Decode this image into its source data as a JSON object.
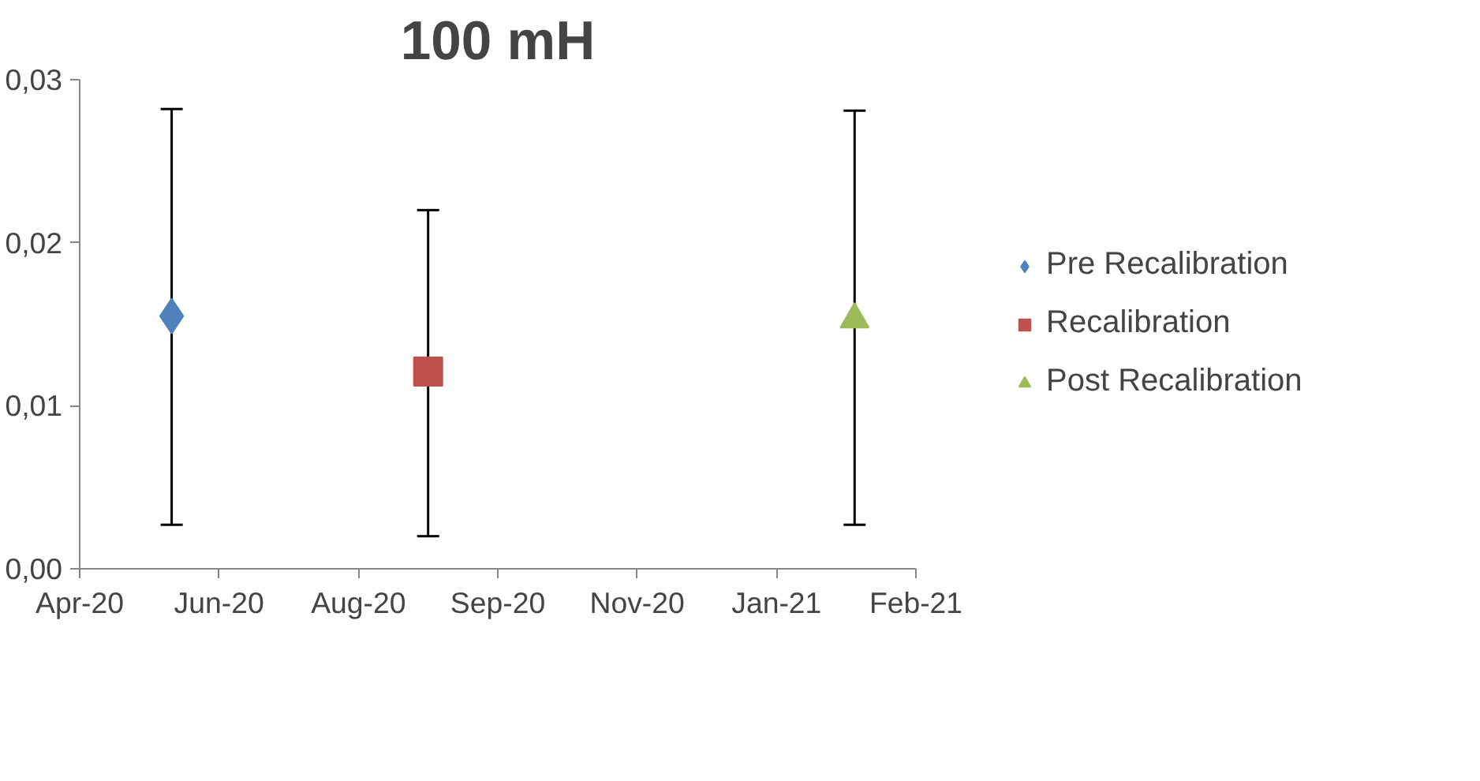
{
  "chart_data": {
    "type": "scatter",
    "title": "100 mH",
    "xlim": [
      "2020-04-30",
      "2021-02-24"
    ],
    "xticks": [
      {
        "value": "2020-04-30",
        "label": "Apr-20"
      },
      {
        "value": "2020-06-19",
        "label": "Jun-20"
      },
      {
        "value": "2020-08-08",
        "label": "Aug-20"
      },
      {
        "value": "2020-09-27",
        "label": "Sep-20"
      },
      {
        "value": "2020-11-16",
        "label": "Nov-20"
      },
      {
        "value": "2021-01-05",
        "label": "Jan-21"
      },
      {
        "value": "2021-02-24",
        "label": "Feb-21"
      }
    ],
    "ylim": [
      0,
      0.03
    ],
    "yticks": [
      {
        "value": 0,
        "label": "0,00"
      },
      {
        "value": 0.01,
        "label": "0,01"
      },
      {
        "value": 0.02,
        "label": "0,02"
      },
      {
        "value": 0.03,
        "label": "0,03"
      }
    ],
    "grid": false,
    "legend": "right",
    "series": [
      {
        "name": "Pre Recalibration",
        "color": "#4f81bd",
        "marker": "diamond",
        "x": [
          "2020-06-02"
        ],
        "values": [
          0.0155
        ],
        "errors": [
          [
            0.0027,
            0.0282
          ]
        ]
      },
      {
        "name": "Recalibration",
        "color": "#c0504d",
        "marker": "square",
        "x": [
          "2020-09-02"
        ],
        "values": [
          0.0121
        ],
        "errors": [
          [
            0.002,
            0.022
          ]
        ]
      },
      {
        "name": "Post Recalibration",
        "color": "#9bbb59",
        "marker": "triangle",
        "x": [
          "2021-02-02"
        ],
        "values": [
          0.0153
        ],
        "errors": [
          [
            0.0027,
            0.0281
          ]
        ]
      }
    ]
  }
}
